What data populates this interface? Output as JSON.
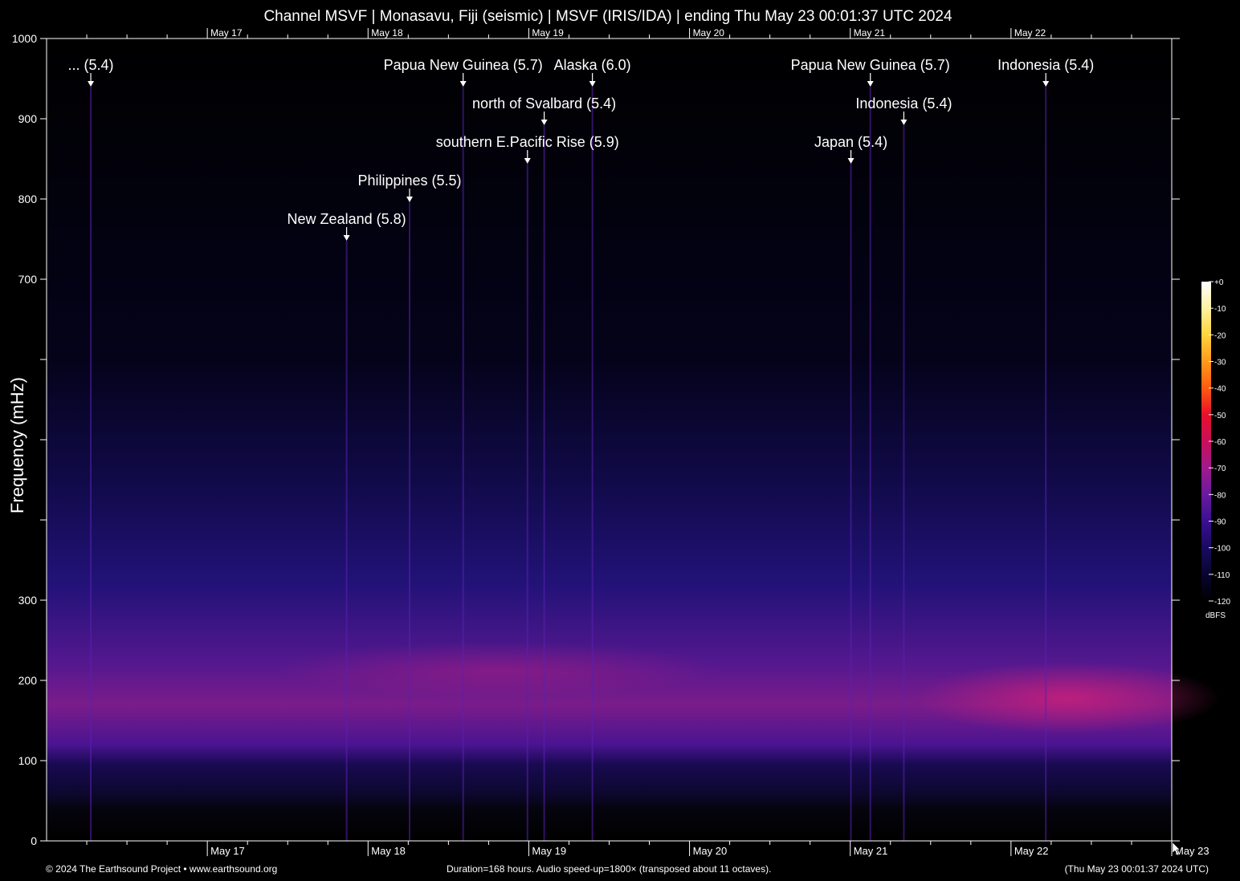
{
  "chart_data": {
    "type": "heatmap",
    "title": "Channel MSVF | Monasavu, Fiji (seismic) | MSVF (IRIS/IDA) | ending Thu May 23 00:01:37 UTC 2024",
    "ylabel": "Frequency (mHz)",
    "ylim": [
      0,
      1000
    ],
    "y_ticks": [
      {
        "value": 0,
        "label": "0"
      },
      {
        "value": 100,
        "label": "100"
      },
      {
        "value": 200,
        "label": "200"
      },
      {
        "value": 300,
        "label": "300"
      },
      {
        "value": 400,
        "label": ""
      },
      {
        "value": 500,
        "label": ""
      },
      {
        "value": 600,
        "label": ""
      },
      {
        "value": 700,
        "label": "700"
      },
      {
        "value": 800,
        "label": "800"
      },
      {
        "value": 900,
        "label": "900"
      },
      {
        "value": 1000,
        "label": "1000"
      }
    ],
    "x_range_hours": [
      0,
      168
    ],
    "x_ticks_bottom": [
      {
        "hour": 24,
        "label": "May 17"
      },
      {
        "hour": 48,
        "label": "May 18"
      },
      {
        "hour": 72,
        "label": "May 19"
      },
      {
        "hour": 96,
        "label": "May 20"
      },
      {
        "hour": 120,
        "label": "May 21"
      },
      {
        "hour": 144,
        "label": "May 22"
      },
      {
        "hour": 168,
        "label": "May 23"
      }
    ],
    "x_ticks_top": [
      {
        "hour": 24,
        "label": "May 17"
      },
      {
        "hour": 48,
        "label": "May 18"
      },
      {
        "hour": 72,
        "label": "May 19"
      },
      {
        "hour": 96,
        "label": "May 20"
      },
      {
        "hour": 120,
        "label": "May 21"
      },
      {
        "hour": 144,
        "label": "May 22"
      }
    ],
    "events": [
      {
        "label": "... (5.4)",
        "hour": 6.6,
        "freq": 940
      },
      {
        "label": "Papua New Guinea (5.7)",
        "hour": 62.2,
        "freq": 940
      },
      {
        "label": "Alaska (6.0)",
        "hour": 81.5,
        "freq": 940
      },
      {
        "label": "north of Svalbard (5.4)",
        "hour": 74.3,
        "freq": 892
      },
      {
        "label": "southern E.Pacific Rise (5.9)",
        "hour": 71.8,
        "freq": 844
      },
      {
        "label": "Philippines (5.5)",
        "hour": 54.2,
        "freq": 796
      },
      {
        "label": "New Zealand (5.8)",
        "hour": 44.8,
        "freq": 748
      },
      {
        "label": "Papua New Guinea (5.7)",
        "hour": 123.0,
        "freq": 940
      },
      {
        "label": "Indonesia (5.4)",
        "hour": 128.0,
        "freq": 892
      },
      {
        "label": "Japan (5.4)",
        "hour": 120.1,
        "freq": 844
      },
      {
        "label": "Indonesia (5.4)",
        "hour": 149.2,
        "freq": 940
      }
    ],
    "colorbar": {
      "unit": "dBFS",
      "ticks": [
        "+0",
        "-10",
        "-20",
        "-30",
        "-40",
        "-50",
        "-60",
        "-70",
        "-80",
        "-90",
        "-100",
        "-110",
        "-120"
      ],
      "colors": [
        "#ffffff",
        "#fff2a0",
        "#ffd43b",
        "#ff9a1a",
        "#ff5a10",
        "#e8102a",
        "#c8105a",
        "#a01a8c",
        "#6a1aa0",
        "#3a1090",
        "#1a0a60",
        "#080530",
        "#000000"
      ]
    }
  },
  "footer": {
    "left": "© 2024 The Earthsound Project • www.earthsound.org",
    "center": "Duration=168 hours. Audio speed-up=1800× (transposed about 11 octaves).",
    "right": "(Thu May 23 00:01:37 2024 UTC)"
  }
}
